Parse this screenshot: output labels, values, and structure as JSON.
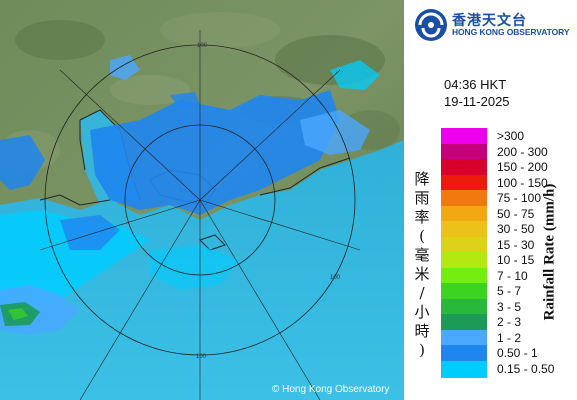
{
  "header": {
    "logo_zh": "香港天文台",
    "logo_en": "HONG KONG OBSERVATORY"
  },
  "timestamp": {
    "time": "04:36 HKT",
    "date": "19-11-2025"
  },
  "legend": {
    "title_en": "Rainfall Rate (mm/h)",
    "title_zh": "降雨率(毫米/小時)",
    "items": [
      {
        "label": ">300",
        "color": "#ee00ee"
      },
      {
        "label": "200 - 300",
        "color": "#c4007a"
      },
      {
        "label": "150 - 200",
        "color": "#d8002a"
      },
      {
        "label": "100 - 150",
        "color": "#ee1a0c"
      },
      {
        "label": "75 - 100",
        "color": "#f07a10"
      },
      {
        "label": "50 - 75",
        "color": "#f2a810"
      },
      {
        "label": "30 - 50",
        "color": "#ecc21a"
      },
      {
        "label": "15 - 30",
        "color": "#dcd218"
      },
      {
        "label": "10 - 15",
        "color": "#b4e812"
      },
      {
        "label": "7 - 10",
        "color": "#74ee10"
      },
      {
        "label": "5 - 7",
        "color": "#3cd420"
      },
      {
        "label": "3 - 5",
        "color": "#28b83c"
      },
      {
        "label": "2 - 3",
        "color": "#1c9a58"
      },
      {
        "label": "1 - 2",
        "color": "#4aa8ff"
      },
      {
        "label": "0.50 - 1",
        "color": "#1f86f0"
      },
      {
        "label": "0.15 - 0.50",
        "color": "#00ccff"
      }
    ]
  },
  "map": {
    "range_labels": [
      "100",
      "100",
      "100"
    ],
    "copyright": "© Hong Kong Observatory"
  }
}
